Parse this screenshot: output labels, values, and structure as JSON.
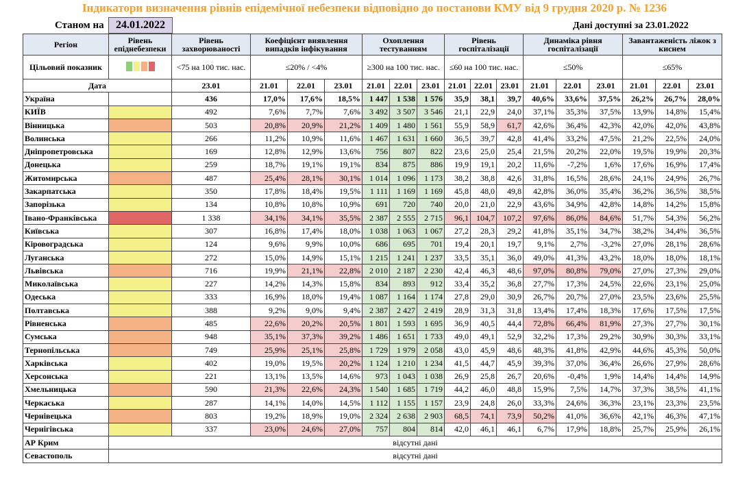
{
  "title": "Індикатори визначення рівнів епідемічної небезпеки відповідно до постанови КМУ від 9 грудня 2020 р. № 1236",
  "as_of_label": "Станом на",
  "as_of_date": "24.01.2022",
  "available_label": "Дані доступні за 23.01.2022",
  "header": {
    "columns": [
      "Регіон",
      "Рівень епіднебезпеки",
      "Рівень захворюваності",
      "Коефіцієнт виявлення випадків інфікування",
      "Охоплення тестуванням",
      "Рівень госпіталізації",
      "Динаміка рівня госпіталізації",
      "Завантаженість ліжок з киснем"
    ],
    "target_label": "Цільовий показник",
    "targets": [
      "<75 на 100 тис. нас.",
      "≤20% / <4%",
      "≥300 на 100 тис. нас.",
      "≤60 на 100 тис. нас.",
      "≤50%",
      "≤65%"
    ],
    "date_label": "Дата",
    "dates": [
      "23.01",
      "21.01",
      "22.01",
      "23.01",
      "21.01",
      "22.01",
      "23.01",
      "21.01",
      "22.01",
      "23.01",
      "21.01",
      "22.01",
      "23.01",
      "21.01",
      "22.01",
      "23.01"
    ]
  },
  "green_columns": [
    4,
    5,
    6
  ],
  "rows": [
    {
      "region": "Україна",
      "bold": true,
      "level_color": null,
      "pink": [],
      "cells": [
        "436",
        "17,0%",
        "17,6%",
        "18,5%",
        "1 447",
        "1 538",
        "1 576",
        "35,9",
        "38,1",
        "39,7",
        "40,6%",
        "33,6%",
        "37,5%",
        "26,2%",
        "26,7%",
        "28,0%"
      ]
    },
    {
      "region": "КИЇВ",
      "level_color": "#f4f08a",
      "pink": [],
      "cells": [
        "492",
        "7,6%",
        "7,7%",
        "7,6%",
        "3 492",
        "3 507",
        "3 546",
        "21,1",
        "22,9",
        "24,0",
        "37,1%",
        "35,3%",
        "37,5%",
        "13,9%",
        "14,8%",
        "15,4%"
      ]
    },
    {
      "region": "Вінницька",
      "level_color": "#f4b183",
      "pink": [
        1,
        2,
        3,
        9
      ],
      "cells": [
        "503",
        "20,8%",
        "20,9%",
        "21,2%",
        "1 409",
        "1 480",
        "1 561",
        "55,9",
        "58,9",
        "61,7",
        "42,6%",
        "36,4%",
        "42,3%",
        "42,0%",
        "42,0%",
        "43,8%"
      ]
    },
    {
      "region": "Волинська",
      "level_color": "#f4f08a",
      "pink": [],
      "cells": [
        "266",
        "11,2%",
        "10,9%",
        "11,6%",
        "1 467",
        "1 631",
        "1 660",
        "36,5",
        "39,7",
        "42,8",
        "41,4%",
        "33,2%",
        "47,5%",
        "21,2%",
        "22,5%",
        "24,0%"
      ]
    },
    {
      "region": "Дніпропетровська",
      "level_color": "#f4f08a",
      "pink": [],
      "cells": [
        "169",
        "12,8%",
        "12,9%",
        "13,6%",
        "756",
        "807",
        "822",
        "23,6",
        "25,0",
        "25,4",
        "21,5%",
        "20,2%",
        "22,0%",
        "19,5%",
        "19,9%",
        "20,3%"
      ]
    },
    {
      "region": "Донецька",
      "level_color": "#f4f08a",
      "pink": [],
      "cells": [
        "259",
        "18,7%",
        "19,1%",
        "19,1%",
        "834",
        "875",
        "886",
        "19,9",
        "19,1",
        "20,2",
        "11,6%",
        "-7,2%",
        "1,6%",
        "17,6%",
        "16,9%",
        "17,4%"
      ]
    },
    {
      "region": "Житомирська",
      "level_color": "#f4b183",
      "pink": [
        1,
        2,
        3
      ],
      "cells": [
        "487",
        "25,4%",
        "28,1%",
        "30,1%",
        "1 014",
        "1 096",
        "1 173",
        "38,2",
        "38,8",
        "42,6",
        "31,8%",
        "16,5%",
        "28,6%",
        "24,1%",
        "24,9%",
        "26,7%"
      ]
    },
    {
      "region": "Закарпатська",
      "level_color": "#f4f08a",
      "pink": [],
      "cells": [
        "350",
        "17,8%",
        "18,4%",
        "19,5%",
        "1 111",
        "1 169",
        "1 169",
        "45,8",
        "48,0",
        "49,8",
        "42,8%",
        "36,0%",
        "35,4%",
        "36,2%",
        "36,5%",
        "38,5%"
      ]
    },
    {
      "region": "Запорізька",
      "level_color": "#f4f08a",
      "pink": [],
      "cells": [
        "134",
        "10,8%",
        "10,8%",
        "10,9%",
        "691",
        "720",
        "740",
        "20,0",
        "21,0",
        "22,9",
        "43,6%",
        "34,9%",
        "42,8%",
        "14,8%",
        "14,2%",
        "15,8%"
      ]
    },
    {
      "region": "Івано-Франківська",
      "level_color": "#e06666",
      "pink": [
        1,
        2,
        3,
        7,
        8,
        9,
        10,
        11,
        12
      ],
      "cells": [
        "1 338",
        "34,1%",
        "34,1%",
        "35,5%",
        "2 387",
        "2 555",
        "2 715",
        "96,1",
        "104,7",
        "107,2",
        "97,6%",
        "86,0%",
        "84,6%",
        "51,7%",
        "54,3%",
        "56,2%"
      ]
    },
    {
      "region": "Київська",
      "level_color": "#f4f08a",
      "pink": [],
      "cells": [
        "307",
        "16,8%",
        "17,4%",
        "18,0%",
        "1 038",
        "1 063",
        "1 067",
        "27,2",
        "28,3",
        "29,2",
        "41,8%",
        "35,1%",
        "34,7%",
        "38,2%",
        "34,4%",
        "36,5%"
      ]
    },
    {
      "region": "Кіровоградська",
      "level_color": "#f4f08a",
      "pink": [],
      "cells": [
        "124",
        "9,6%",
        "9,9%",
        "10,0%",
        "686",
        "695",
        "701",
        "19,4",
        "20,1",
        "19,7",
        "9,1%",
        "2,7%",
        "-3,2%",
        "27,0%",
        "28,1%",
        "28,6%"
      ]
    },
    {
      "region": "Луганська",
      "level_color": "#f4f08a",
      "pink": [],
      "cells": [
        "272",
        "15,0%",
        "14,9%",
        "15,1%",
        "1 215",
        "1 241",
        "1 237",
        "33,5",
        "35,1",
        "36,0",
        "49,0%",
        "41,3%",
        "43,2%",
        "18,0%",
        "18,0%",
        "18,1%"
      ]
    },
    {
      "region": "Львівська",
      "level_color": "#f4b183",
      "pink": [
        2,
        3,
        10,
        11,
        12
      ],
      "cells": [
        "716",
        "19,9%",
        "21,1%",
        "22,8%",
        "2 010",
        "2 187",
        "2 230",
        "42,4",
        "46,3",
        "48,6",
        "97,0%",
        "80,8%",
        "79,0%",
        "27,0%",
        "27,3%",
        "29,0%"
      ]
    },
    {
      "region": "Миколаївська",
      "level_color": "#f4f08a",
      "pink": [],
      "cells": [
        "227",
        "14,2%",
        "14,3%",
        "15,8%",
        "834",
        "893",
        "912",
        "33,4",
        "35,2",
        "36,8",
        "27,7%",
        "17,3%",
        "24,5%",
        "22,6%",
        "23,1%",
        "25,0%"
      ]
    },
    {
      "region": "Одеська",
      "level_color": "#f4f08a",
      "pink": [],
      "cells": [
        "333",
        "16,9%",
        "18,0%",
        "19,4%",
        "1 087",
        "1 164",
        "1 174",
        "27,8",
        "29,0",
        "30,9",
        "26,7%",
        "20,7%",
        "27,0%",
        "23,5%",
        "23,6%",
        "25,5%"
      ]
    },
    {
      "region": "Полтавська",
      "level_color": "#f4f08a",
      "pink": [],
      "cells": [
        "388",
        "9,2%",
        "9,0%",
        "9,4%",
        "2 387",
        "2 427",
        "2 419",
        "28,9",
        "31,3",
        "31,8",
        "13,4%",
        "17,4%",
        "18,3%",
        "17,6%",
        "17,5%",
        "17,5%"
      ]
    },
    {
      "region": "Рівненська",
      "level_color": "#f4b183",
      "pink": [
        1,
        2,
        3,
        10,
        11,
        12
      ],
      "cells": [
        "485",
        "22,6%",
        "20,2%",
        "20,5%",
        "1 801",
        "1 593",
        "1 695",
        "36,9",
        "40,5",
        "44,4",
        "72,8%",
        "66,4%",
        "81,9%",
        "27,3%",
        "27,7%",
        "30,1%"
      ]
    },
    {
      "region": "Сумська",
      "level_color": "#f4b183",
      "pink": [
        1,
        2,
        3
      ],
      "cells": [
        "948",
        "35,1%",
        "37,3%",
        "39,2%",
        "1 486",
        "1 651",
        "1 733",
        "49,0",
        "49,1",
        "52,9",
        "32,2%",
        "17,3%",
        "29,2%",
        "30,9%",
        "30,3%",
        "33,1%"
      ]
    },
    {
      "region": "Тернопільська",
      "level_color": "#f4b183",
      "pink": [
        1,
        2,
        3
      ],
      "cells": [
        "749",
        "25,9%",
        "25,1%",
        "25,8%",
        "1 729",
        "1 979",
        "2 058",
        "43,0",
        "45,9",
        "48,6",
        "48,3%",
        "41,8%",
        "42,9%",
        "44,6%",
        "45,3%",
        "50,0%"
      ]
    },
    {
      "region": "Харківська",
      "level_color": "#f4f08a",
      "pink": [
        3
      ],
      "cells": [
        "402",
        "19,0%",
        "19,5%",
        "20,2%",
        "1 124",
        "1 210",
        "1 234",
        "41,5",
        "44,7",
        "45,9",
        "39,3%",
        "37,0%",
        "36,4%",
        "26,6%",
        "27,9%",
        "28,6%"
      ]
    },
    {
      "region": "Херсонська",
      "level_color": "#f4f08a",
      "pink": [],
      "cells": [
        "221",
        "13,1%",
        "13,5%",
        "14,6%",
        "973",
        "1 043",
        "1 038",
        "26,9",
        "25,8",
        "26,7",
        "20,6%",
        "-0,4%",
        "1,9%",
        "14,4%",
        "14,4%",
        "14,9%"
      ]
    },
    {
      "region": "Хмельницька",
      "level_color": "#f4b183",
      "pink": [
        1,
        2,
        3
      ],
      "cells": [
        "590",
        "21,3%",
        "22,6%",
        "24,3%",
        "1 540",
        "1 685",
        "1 719",
        "44,2",
        "46,0",
        "48,8",
        "15,9%",
        "7,5%",
        "14,7%",
        "37,3%",
        "38,5%",
        "41,1%"
      ]
    },
    {
      "region": "Черкаська",
      "level_color": "#f4f08a",
      "pink": [],
      "cells": [
        "287",
        "14,1%",
        "14,0%",
        "14,5%",
        "1 112",
        "1 155",
        "1 157",
        "23,9",
        "24,8",
        "26,0",
        "33,3%",
        "24,6%",
        "36,3%",
        "23,1%",
        "23,3%",
        "23,5%"
      ]
    },
    {
      "region": "Чернівецька",
      "level_color": "#f4b183",
      "pink": [
        7,
        8,
        9,
        10
      ],
      "cells": [
        "803",
        "19,2%",
        "18,9%",
        "19,0%",
        "2 324",
        "2 638",
        "2 903",
        "68,5",
        "74,1",
        "73,9",
        "50,2%",
        "41,0%",
        "36,6%",
        "42,1%",
        "46,3%",
        "47,1%"
      ]
    },
    {
      "region": "Чернігівська",
      "level_color": "#f4f08a",
      "pink": [
        1,
        2,
        3
      ],
      "cells": [
        "337",
        "23,0%",
        "24,6%",
        "27,0%",
        "757",
        "804",
        "814",
        "42,0",
        "46,1",
        "46,1",
        "6,7%",
        "17,9%",
        "18,8%",
        "25,7%",
        "25,9%",
        "26,1%"
      ]
    },
    {
      "region": "АР Крим",
      "note": "відсутні дані"
    },
    {
      "region": "Севастополь",
      "note": "відсутні дані"
    }
  ]
}
